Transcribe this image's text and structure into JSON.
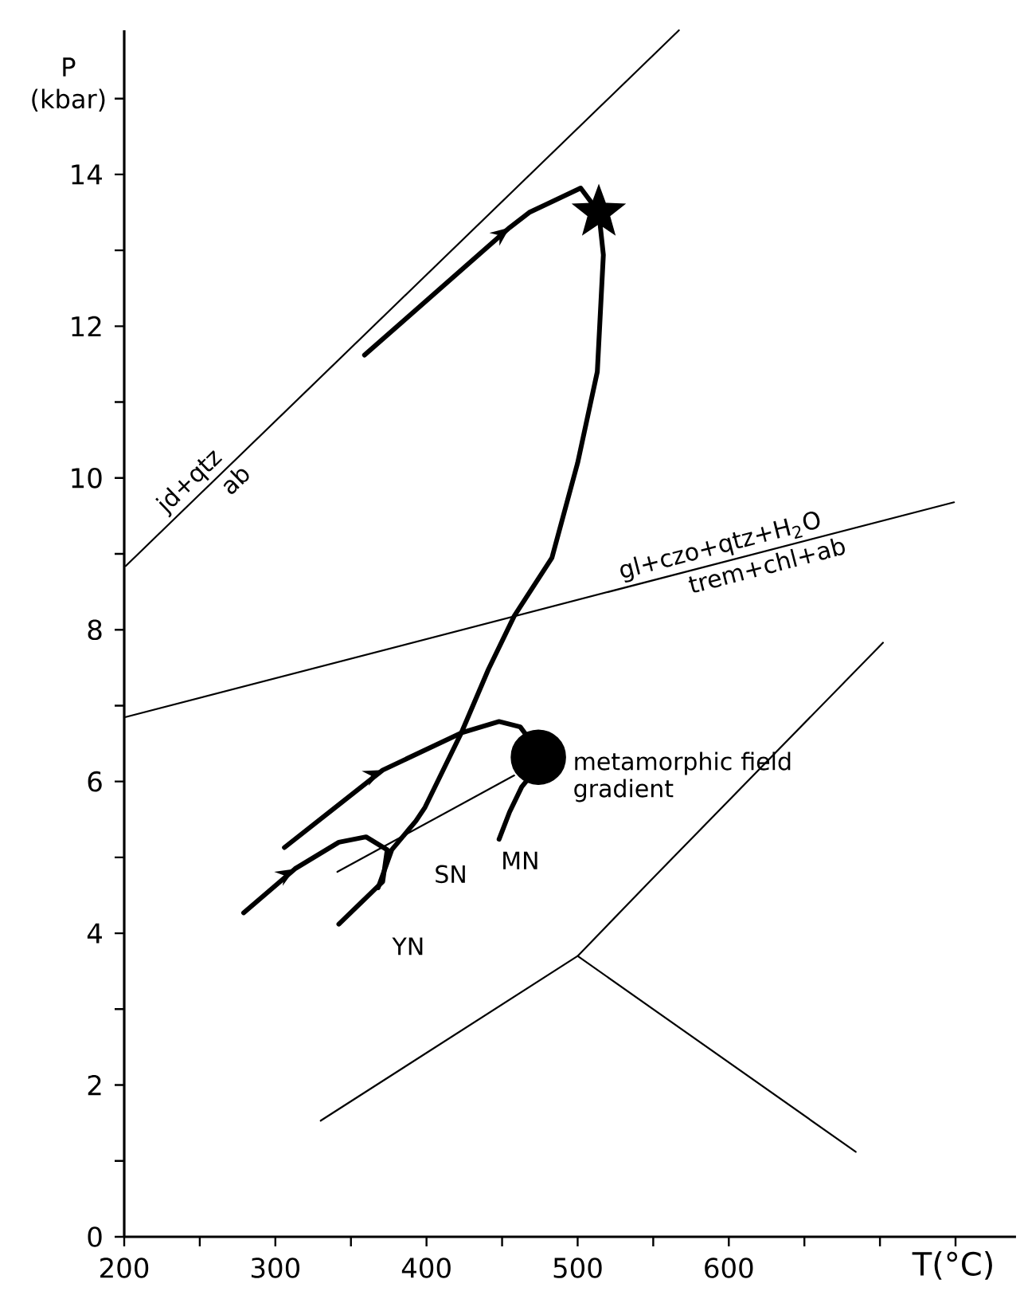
{
  "chart_data": {
    "type": "line",
    "xlabel": "T(°C)",
    "ylabel": "P (kbar)",
    "xlim": [
      200,
      790
    ],
    "ylim": [
      0,
      15.9
    ],
    "xticks": [
      200,
      {
        "value": 250,
        "label": null
      },
      300,
      {
        "value": 350,
        "label": null
      },
      400,
      {
        "value": 450,
        "label": null
      },
      500,
      {
        "value": 550,
        "label": null
      },
      600,
      {
        "value": 650,
        "label": null
      },
      {
        "value": 700,
        "label": null
      },
      {
        "value": 750,
        "label": null
      }
    ],
    "yticks": [
      0,
      {
        "value": 1,
        "label": null
      },
      2,
      {
        "value": 3,
        "label": null
      },
      4,
      {
        "value": 5,
        "label": null
      },
      6,
      {
        "value": 7,
        "label": null
      },
      8,
      {
        "value": 9,
        "label": null
      },
      10,
      {
        "value": 11,
        "label": null
      },
      12,
      {
        "value": 13,
        "label": null
      },
      14,
      {
        "value": 15,
        "label": null
      }
    ],
    "series": [
      {
        "color": "#000000",
        "x": [
          201,
          567
        ],
        "values": [
          8.84,
          15.9
        ]
      },
      {
        "color": "#000000",
        "x": [
          201,
          749
        ],
        "values": [
          6.85,
          9.68
        ]
      },
      {
        "color": "#000000",
        "x": [
          330,
          500,
          549,
          702
        ],
        "values": [
          1.53,
          3.7,
          4.71,
          7.83
        ]
      },
      {
        "color": "#000000",
        "x": [
          500,
          684
        ],
        "values": [
          3.7,
          1.12
        ]
      },
      {
        "color": "#000000",
        "x": [
          341,
          458
        ],
        "values": [
          4.81,
          6.08
        ]
      },
      {
        "color": "#000000",
        "x": [
          359,
          455,
          468,
          502,
          514,
          517,
          513,
          500,
          483,
          458,
          441,
          423,
          399,
          393,
          377,
          368
        ],
        "values": [
          11.62,
          13.3,
          13.5,
          13.82,
          13.5,
          12.94,
          11.4,
          10.2,
          8.95,
          8.18,
          7.48,
          6.64,
          5.66,
          5.48,
          5.1,
          4.6
        ]
      },
      {
        "color": "#000000",
        "x": [
          306,
          371,
          423,
          448,
          462,
          472,
          470,
          463,
          455,
          448
        ],
        "values": [
          5.13,
          6.15,
          6.64,
          6.79,
          6.72,
          6.45,
          6.1,
          5.93,
          5.6,
          5.24
        ]
      },
      {
        "color": "#000000",
        "x": [
          279,
          313,
          342,
          360,
          374,
          371,
          342
        ],
        "values": [
          4.27,
          4.85,
          5.2,
          5.27,
          5.1,
          4.68,
          4.12
        ]
      },
      {
        "type": "scatter",
        "color": "#000000",
        "marker": "star",
        "x": [
          514
        ],
        "values": [
          13.5
        ]
      },
      {
        "type": "scatter",
        "color": "#000000",
        "marker": "circle",
        "x": [
          474
        ],
        "values": [
          6.32
        ]
      }
    ],
    "annotations": [
      "jd+qtz",
      "ab",
      "gl+czo+qtz+H$_{2}$O",
      "trem+chl+ab",
      "YN",
      "SN",
      "MN",
      "metamorphic field gradient"
    ]
  }
}
